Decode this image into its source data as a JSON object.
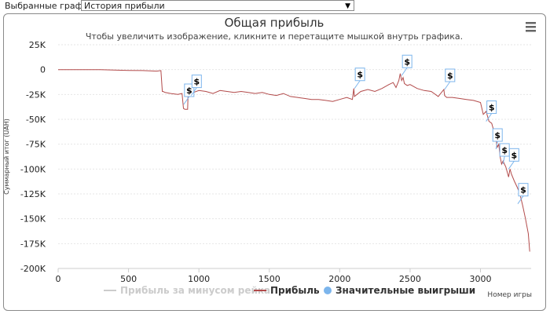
{
  "selector": {
    "label": "Выбранные графики:",
    "value": "История прибыли"
  },
  "chart_data": {
    "type": "line",
    "title": "Общая прибыль",
    "subtitle": "Чтобы увеличить изображение, кликните и перетащите мышкой внутрь графика.",
    "xlabel": "Номер игры",
    "ylabel": "Суммарный итог (UAH)",
    "xlim": [
      0,
      3360
    ],
    "ylim": [
      -200000,
      25000
    ],
    "x_ticks": [
      0,
      500,
      1000,
      1500,
      2000,
      2500,
      3000
    ],
    "x_tick_labels": [
      "0",
      "500",
      "1000",
      "1500",
      "2000",
      "2500",
      "3000"
    ],
    "y_ticks": [
      25000,
      0,
      -25000,
      -50000,
      -75000,
      -100000,
      -125000,
      -150000,
      -175000,
      -200000
    ],
    "y_tick_labels": [
      "25K",
      "0",
      "-25K",
      "-50K",
      "-75K",
      "-100K",
      "-125K",
      "-150K",
      "-175K",
      "-200K"
    ],
    "grid": "horizontal",
    "legend_position": "bottom",
    "series": [
      {
        "name": "Прибыль за минусом рейка",
        "visible": false,
        "color": "#cccccc",
        "x": [],
        "y": []
      },
      {
        "name": "Прибыль",
        "color": "#b24a4a",
        "x": [
          0,
          100,
          200,
          300,
          400,
          500,
          600,
          700,
          730,
          740,
          745,
          760,
          800,
          850,
          880,
          890,
          900,
          920,
          925,
          930,
          960,
          1000,
          1050,
          1100,
          1150,
          1200,
          1250,
          1300,
          1350,
          1400,
          1450,
          1500,
          1550,
          1600,
          1650,
          1700,
          1750,
          1800,
          1850,
          1900,
          1950,
          2000,
          2050,
          2090,
          2100,
          2105,
          2150,
          2200,
          2250,
          2300,
          2350,
          2380,
          2400,
          2420,
          2430,
          2440,
          2450,
          2460,
          2480,
          2500,
          2550,
          2600,
          2650,
          2700,
          2740,
          2745,
          2760,
          2800,
          2850,
          2900,
          2950,
          3000,
          3020,
          3040,
          3060,
          3080,
          3100,
          3110,
          3120,
          3130,
          3140,
          3150,
          3160,
          3180,
          3200,
          3210,
          3220,
          3240,
          3260,
          3280,
          3300,
          3320,
          3340,
          3350
        ],
        "y": [
          0,
          0,
          0,
          0,
          -500,
          -800,
          -1000,
          -1500,
          -1000,
          -22000,
          -22000,
          -23000,
          -24000,
          -25000,
          -24000,
          -39000,
          -40000,
          -40000,
          -15000,
          -25000,
          -23000,
          -21000,
          -22000,
          -24000,
          -21000,
          -22000,
          -23000,
          -22000,
          -23000,
          -24000,
          -23000,
          -25000,
          -26000,
          -24000,
          -27000,
          -28000,
          -29000,
          -30000,
          -30000,
          -31000,
          -32000,
          -30000,
          -28000,
          -30000,
          -19000,
          -27000,
          -22000,
          -20000,
          -22000,
          -19000,
          -15000,
          -13000,
          -18000,
          -11000,
          -4000,
          -11000,
          -8000,
          -14000,
          -16000,
          -15000,
          -19000,
          -21000,
          -22000,
          -27000,
          -20000,
          -26000,
          -28000,
          -28000,
          -29000,
          -30000,
          -31000,
          -33000,
          -45000,
          -42000,
          -52000,
          -54000,
          -64000,
          -70000,
          -78000,
          -75000,
          -88000,
          -95000,
          -92000,
          -98000,
          -108000,
          -100000,
          -105000,
          -112000,
          -118000,
          -125000,
          -137000,
          -150000,
          -165000,
          -183000
        ]
      },
      {
        "name": "Значительные выигрыши",
        "color": "#7cb5ec",
        "marker_symbol": "$",
        "x": [
          892,
          945,
          2105,
          2440,
          2745,
          3040,
          3110,
          3160,
          3200,
          3265
        ],
        "y": [
          -35000,
          -26000,
          -19000,
          -6000,
          -20000,
          -52000,
          -80000,
          -95000,
          -100000,
          -135000
        ]
      }
    ]
  }
}
